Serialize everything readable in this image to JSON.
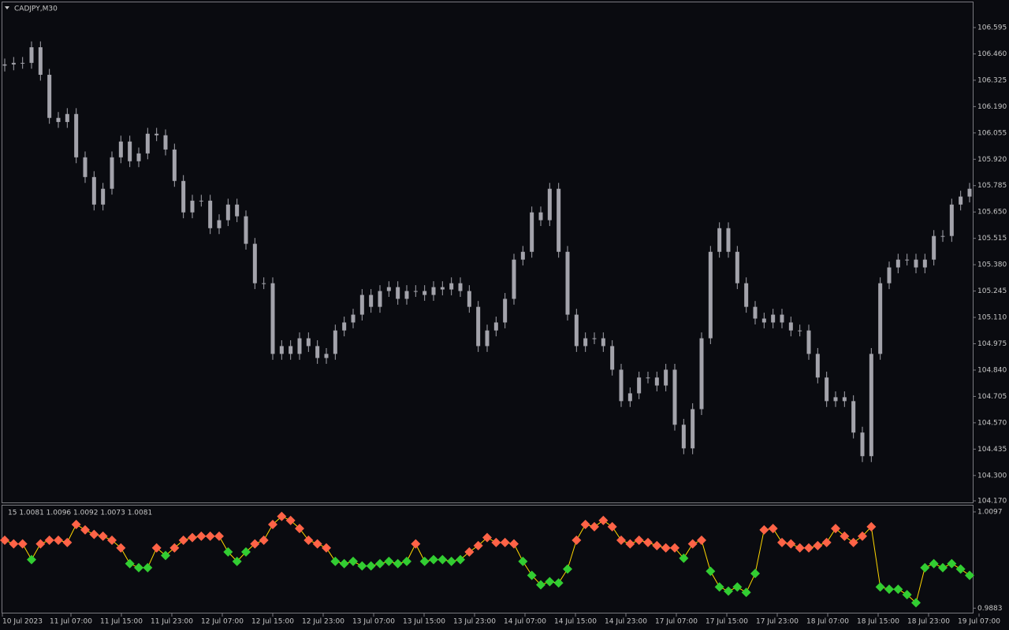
{
  "chart_data": [
    {
      "type": "candlestick",
      "title": "CADJPY,M30",
      "color": "#a3a3ab",
      "ylim": [
        104.162,
        106.724
      ],
      "yticks": [
        106.595,
        {
          "value": 106.46,
          "label": "106.460"
        },
        106.325,
        {
          "value": 106.19,
          "label": "106.190"
        },
        106.055,
        {
          "value": 105.92,
          "label": "105.920"
        },
        105.785,
        {
          "value": 105.65,
          "label": "105.650"
        },
        105.515,
        {
          "value": 105.38,
          "label": "105.380"
        },
        105.245,
        {
          "value": 105.11,
          "label": "105.110"
        },
        104.975,
        {
          "value": 104.84,
          "label": "104.840"
        },
        104.705,
        {
          "value": 104.57,
          "label": "104.570"
        },
        104.435,
        {
          "value": 104.3,
          "label": "104.300"
        },
        {
          "value": 104.17,
          "label": "104.170"
        }
      ],
      "open": [
        106.4,
        106.406,
        106.414,
        106.414,
        106.494,
        106.353,
        106.132,
        106.111,
        106.152,
        105.93,
        105.829,
        105.688,
        105.769,
        105.93,
        106.011,
        105.91,
        105.95,
        106.051,
        106.043,
        105.97,
        105.809,
        105.648,
        105.708,
        105.708,
        105.567,
        105.608,
        105.688,
        105.628,
        105.487,
        105.285,
        105.285,
        104.923,
        104.963,
        104.923,
        105.003,
        104.963,
        104.902,
        104.923,
        105.043,
        105.084,
        105.124,
        105.225,
        105.164,
        105.245,
        105.265,
        105.205,
        105.245,
        105.245,
        105.225,
        105.265,
        105.253,
        105.285,
        105.245,
        105.164,
        104.963,
        105.043,
        105.084,
        105.205,
        105.406,
        105.446,
        105.648,
        105.608,
        105.769,
        105.446,
        105.124,
        104.963,
        105.003,
        105.003,
        104.963,
        104.842,
        104.681,
        104.721,
        104.802,
        104.802,
        104.761,
        104.842,
        104.56,
        104.439,
        104.64,
        105.003,
        105.446,
        105.567,
        105.446,
        105.285,
        105.164,
        105.104,
        105.084,
        105.124,
        105.084,
        105.043,
        105.043,
        104.923,
        104.802,
        104.681,
        104.701,
        104.681,
        104.52,
        104.399,
        104.923,
        105.285,
        105.366,
        105.406,
        105.406,
        105.366,
        105.406,
        105.527,
        105.527,
        105.688,
        105.729
      ],
      "high": [
        106.436,
        106.444,
        106.444,
        106.524,
        106.524,
        106.383,
        106.162,
        106.182,
        106.182,
        105.96,
        105.859,
        105.799,
        105.96,
        106.041,
        106.041,
        105.98,
        106.081,
        106.081,
        106.073,
        106.0,
        105.839,
        105.738,
        105.738,
        105.738,
        105.638,
        105.718,
        105.718,
        105.658,
        105.517,
        105.315,
        105.315,
        104.993,
        104.993,
        105.033,
        105.033,
        104.993,
        104.953,
        105.073,
        105.114,
        105.154,
        105.255,
        105.255,
        105.275,
        105.295,
        105.295,
        105.275,
        105.275,
        105.275,
        105.295,
        105.295,
        105.315,
        105.315,
        105.275,
        105.194,
        105.073,
        105.114,
        105.235,
        105.436,
        105.476,
        105.678,
        105.678,
        105.799,
        105.799,
        105.476,
        105.154,
        105.033,
        105.033,
        105.033,
        104.993,
        104.872,
        104.751,
        104.832,
        104.832,
        104.832,
        104.872,
        104.872,
        104.59,
        104.67,
        105.033,
        105.476,
        105.597,
        105.597,
        105.476,
        105.315,
        105.194,
        105.134,
        105.154,
        105.154,
        105.114,
        105.073,
        105.073,
        104.953,
        104.832,
        104.731,
        104.731,
        104.711,
        104.55,
        104.953,
        105.315,
        105.396,
        105.436,
        105.436,
        105.436,
        105.436,
        105.557,
        105.557,
        105.718,
        105.759,
        105.799
      ],
      "low": [
        106.37,
        106.376,
        106.384,
        106.384,
        106.323,
        106.102,
        106.081,
        106.081,
        105.9,
        105.799,
        105.658,
        105.658,
        105.739,
        105.9,
        105.88,
        105.88,
        105.92,
        106.013,
        105.94,
        105.779,
        105.618,
        105.618,
        105.678,
        105.537,
        105.537,
        105.578,
        105.598,
        105.457,
        105.255,
        105.255,
        104.893,
        104.893,
        104.893,
        104.893,
        104.933,
        104.872,
        104.872,
        104.893,
        105.013,
        105.054,
        105.094,
        105.134,
        105.134,
        105.215,
        105.175,
        105.175,
        105.215,
        105.195,
        105.195,
        105.223,
        105.223,
        105.215,
        105.134,
        104.933,
        104.933,
        105.013,
        105.054,
        105.175,
        105.376,
        105.416,
        105.578,
        105.578,
        105.416,
        105.094,
        104.933,
        104.933,
        104.973,
        104.933,
        104.812,
        104.651,
        104.651,
        104.691,
        104.772,
        104.731,
        104.731,
        104.53,
        104.409,
        104.409,
        104.61,
        104.973,
        105.416,
        105.416,
        105.255,
        105.134,
        105.074,
        105.054,
        105.054,
        105.054,
        105.013,
        105.013,
        104.893,
        104.772,
        104.651,
        104.651,
        104.651,
        104.49,
        104.369,
        104.369,
        104.893,
        105.255,
        105.336,
        105.376,
        105.336,
        105.336,
        105.376,
        105.497,
        105.497,
        105.658,
        105.699
      ],
      "close": [
        106.406,
        106.414,
        106.414,
        106.494,
        106.353,
        106.132,
        106.111,
        106.152,
        105.93,
        105.829,
        105.688,
        105.769,
        105.93,
        106.011,
        105.91,
        105.95,
        106.051,
        106.043,
        105.97,
        105.809,
        105.648,
        105.708,
        105.708,
        105.567,
        105.608,
        105.688,
        105.628,
        105.487,
        105.285,
        105.285,
        104.923,
        104.963,
        104.923,
        105.003,
        104.963,
        104.902,
        104.923,
        105.043,
        105.084,
        105.124,
        105.225,
        105.164,
        105.245,
        105.265,
        105.205,
        105.245,
        105.245,
        105.225,
        105.265,
        105.253,
        105.285,
        105.245,
        105.164,
        104.963,
        105.043,
        105.084,
        105.205,
        105.406,
        105.446,
        105.648,
        105.608,
        105.769,
        105.446,
        105.124,
        104.963,
        105.003,
        105.003,
        104.963,
        104.842,
        104.681,
        104.721,
        104.802,
        104.802,
        104.761,
        104.842,
        104.56,
        104.439,
        104.64,
        105.003,
        105.446,
        105.567,
        105.446,
        105.285,
        105.164,
        105.104,
        105.084,
        105.124,
        105.084,
        105.043,
        105.043,
        104.923,
        104.802,
        104.681,
        104.701,
        104.681,
        104.52,
        104.399,
        104.923,
        105.285,
        105.366,
        105.406,
        105.406,
        105.366,
        105.406,
        105.527,
        105.527,
        105.688,
        105.729,
        105.769
      ]
    },
    {
      "type": "line",
      "title": "15 1.0081 1.0096 1.0092 1.0073 1.0081",
      "line_color": "#ffd700",
      "ylim": [
        0.9873,
        1.0111
      ],
      "yticks": [
        1.0097,
        0.9883
      ],
      "xtick_labels": [
        "10 Jul 2023",
        "11 Jul 07:00",
        "11 Jul 15:00",
        "11 Jul 23:00",
        "12 Jul 07:00",
        "12 Jul 15:00",
        "12 Jul 23:00",
        "13 Jul 07:00",
        "13 Jul 15:00",
        "13 Jul 23:00",
        "14 Jul 07:00",
        "14 Jul 15:00",
        "14 Jul 23:00",
        "17 Jul 07:00",
        "17 Jul 15:00",
        "17 Jul 23:00",
        "18 Jul 07:00",
        "18 Jul 15:00",
        "18 Jul 23:00",
        "19 Jul 07:00"
      ],
      "series": [
        {
          "color": "#ff6347",
          "values": [
            1.0034,
            1.0026,
            1.0026,
            null,
            1.0026,
            1.0034,
            1.0034,
            1.0029,
            1.0069,
            1.0057,
            1.0047,
            1.0043,
            1.0034,
            1.0017,
            null,
            null,
            null,
            1.0017,
            null,
            1.0017,
            1.0034,
            1.004,
            1.0043,
            1.0043,
            1.0043,
            null,
            null,
            null,
            1.0026,
            1.0034,
            1.0069,
            1.0087,
            1.0078,
            1.006,
            1.0034,
            1.0026,
            1.0017,
            null,
            null,
            null,
            null,
            null,
            null,
            null,
            null,
            null,
            1.0026,
            null,
            null,
            null,
            null,
            null,
            1.0008,
            1.0022,
            1.004,
            1.0029,
            1.0029,
            1.0026,
            null,
            null,
            null,
            null,
            null,
            null,
            1.0034,
            1.0069,
            1.0064,
            1.0078,
            1.0064,
            1.0034,
            1.0026,
            1.0034,
            1.0029,
            1.0022,
            1.0017,
            1.0017,
            null,
            1.0026,
            1.0034,
            null,
            null,
            null,
            null,
            null,
            null,
            1.0057,
            1.006,
            1.0029,
            1.0026,
            1.0017,
            1.0017,
            1.0022,
            1.0029,
            1.006,
            1.0043,
            1.0029,
            1.0043,
            1.0064,
            null,
            null,
            null,
            null,
            null,
            null,
            null,
            null,
            null,
            null,
            null
          ]
        },
        {
          "color": "#32cd32",
          "values": [
            null,
            null,
            null,
            0.9991,
            null,
            null,
            null,
            null,
            null,
            null,
            null,
            null,
            null,
            null,
            0.9982,
            0.9973,
            0.9973,
            null,
            1.0,
            null,
            null,
            null,
            null,
            null,
            null,
            1.0008,
            0.9987,
            1.0008,
            null,
            null,
            null,
            null,
            null,
            null,
            null,
            null,
            null,
            0.9987,
            0.9982,
            0.9987,
            0.9977,
            0.9977,
            0.9982,
            0.9987,
            0.9982,
            0.9987,
            null,
            0.9987,
            0.9991,
            0.9991,
            0.9987,
            0.9991,
            null,
            null,
            null,
            null,
            null,
            null,
            0.9987,
            0.9956,
            0.9935,
            0.9942,
            0.9939,
            0.997,
            null,
            null,
            null,
            null,
            null,
            null,
            null,
            null,
            null,
            null,
            null,
            null,
            0.9994,
            null,
            null,
            0.9965,
            0.993,
            0.9921,
            0.993,
            0.9918,
            0.996,
            null,
            null,
            null,
            null,
            null,
            null,
            null,
            null,
            null,
            null,
            null,
            null,
            null,
            0.993,
            0.9925,
            0.9925,
            0.9913,
            0.9895,
            0.9973,
            0.9982,
            0.9973,
            0.9982,
            0.997,
            0.9956
          ]
        }
      ]
    }
  ]
}
